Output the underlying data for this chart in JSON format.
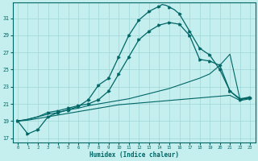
{
  "xlabel": "Humidex (Indice chaleur)",
  "bg_color": "#c5eeee",
  "grid_color": "#9fd8d8",
  "line_color": "#006666",
  "xlim": [
    -0.5,
    23.5
  ],
  "ylim": [
    16.5,
    32.8
  ],
  "yticks": [
    17,
    19,
    21,
    23,
    25,
    27,
    29,
    31
  ],
  "xticks": [
    0,
    1,
    2,
    3,
    4,
    5,
    6,
    7,
    8,
    9,
    10,
    11,
    12,
    13,
    14,
    15,
    16,
    17,
    18,
    19,
    20,
    21,
    22,
    23
  ],
  "curve1_x": [
    0,
    1,
    2,
    3,
    4,
    5,
    6,
    7,
    8,
    9,
    10,
    11,
    12,
    13,
    14,
    14.3,
    14.7,
    15,
    15.5,
    16,
    17,
    18,
    19,
    20,
    21,
    22,
    23
  ],
  "curve1_y": [
    19.0,
    17.5,
    18.0,
    19.5,
    20.0,
    20.3,
    20.7,
    21.5,
    23.2,
    24.0,
    26.5,
    29.0,
    30.8,
    31.8,
    32.4,
    32.6,
    32.5,
    32.3,
    32.0,
    31.5,
    29.5,
    27.5,
    26.7,
    25.0,
    22.5,
    21.5,
    21.7
  ],
  "curve2_x": [
    0,
    1,
    2,
    3,
    4,
    5,
    6,
    7,
    8,
    9,
    10,
    11,
    12,
    13,
    14,
    15,
    16,
    17,
    18,
    19,
    20,
    21,
    22,
    23
  ],
  "curve2_y": [
    19.0,
    19.2,
    19.5,
    20.0,
    20.2,
    20.5,
    20.8,
    21.0,
    21.5,
    22.5,
    24.5,
    26.5,
    28.5,
    29.5,
    30.2,
    30.5,
    30.3,
    29.0,
    26.2,
    26.0,
    25.5,
    22.5,
    21.6,
    21.8
  ],
  "curve3_x": [
    0,
    1,
    2,
    3,
    4,
    5,
    6,
    7,
    8,
    9,
    10,
    11,
    12,
    13,
    14,
    15,
    16,
    17,
    18,
    19,
    20,
    21,
    22,
    23
  ],
  "curve3_y": [
    19.0,
    19.2,
    19.5,
    19.8,
    20.0,
    20.3,
    20.5,
    20.8,
    21.0,
    21.2,
    21.4,
    21.6,
    21.9,
    22.2,
    22.5,
    22.8,
    23.2,
    23.6,
    24.0,
    24.5,
    25.5,
    26.8,
    21.5,
    21.8
  ],
  "curve4_x": [
    0,
    1,
    2,
    3,
    4,
    5,
    6,
    7,
    8,
    9,
    10,
    11,
    12,
    13,
    14,
    15,
    16,
    17,
    18,
    19,
    20,
    21,
    22,
    23
  ],
  "curve4_y": [
    19.0,
    19.1,
    19.3,
    19.5,
    19.7,
    19.9,
    20.1,
    20.3,
    20.5,
    20.7,
    20.9,
    21.0,
    21.1,
    21.2,
    21.3,
    21.4,
    21.5,
    21.6,
    21.7,
    21.8,
    21.9,
    22.0,
    21.4,
    21.6
  ],
  "curve1_marker_x": [
    0,
    1,
    2,
    3,
    4,
    5,
    6,
    7,
    8,
    9,
    10,
    11,
    12,
    13,
    14,
    15,
    16,
    17,
    18,
    19,
    20,
    21,
    22,
    23
  ],
  "curve1_marker_y": [
    19.0,
    17.5,
    18.0,
    19.5,
    20.0,
    20.3,
    20.7,
    21.5,
    23.2,
    24.0,
    26.5,
    29.0,
    30.8,
    31.8,
    32.4,
    32.3,
    31.5,
    29.5,
    27.5,
    26.7,
    25.0,
    22.5,
    21.5,
    21.7
  ],
  "curve2_marker_x": [
    0,
    3,
    4,
    5,
    6,
    7,
    8,
    9,
    10,
    11,
    12,
    13,
    14,
    15,
    16,
    17,
    18,
    19,
    20,
    21,
    22,
    23
  ],
  "curve2_marker_y": [
    19.0,
    20.0,
    20.2,
    20.5,
    20.8,
    21.0,
    21.5,
    22.5,
    24.5,
    26.5,
    28.5,
    29.5,
    30.2,
    30.5,
    30.3,
    29.0,
    26.2,
    26.0,
    25.5,
    22.5,
    21.6,
    21.8
  ]
}
